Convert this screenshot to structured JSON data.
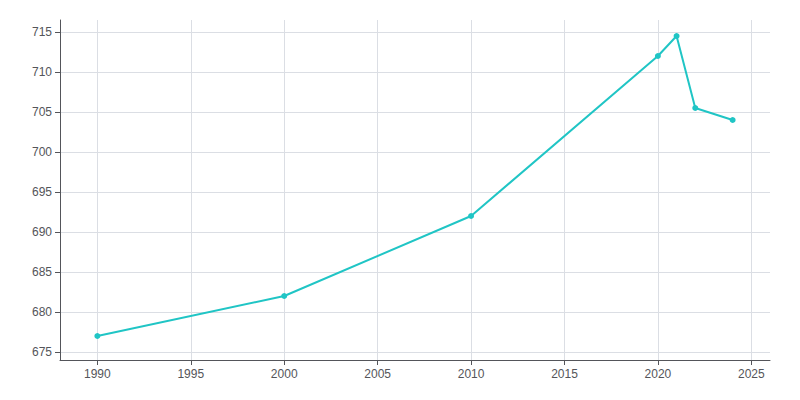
{
  "chart_data": {
    "type": "line",
    "x": [
      1990,
      2000,
      2010,
      2020,
      2021,
      2022,
      2024
    ],
    "values": [
      677,
      682,
      692,
      712,
      714.5,
      705.5,
      704
    ],
    "color": "#20c5c5",
    "marker": "circle",
    "xlim": [
      1988,
      2026
    ],
    "xticks": [
      1990,
      1995,
      2000,
      2005,
      2010,
      2015,
      2020,
      2025
    ],
    "ylim": [
      674,
      716.5
    ],
    "yticks": [
      675,
      680,
      685,
      690,
      695,
      700,
      705,
      710,
      715
    ],
    "grid": true
  }
}
